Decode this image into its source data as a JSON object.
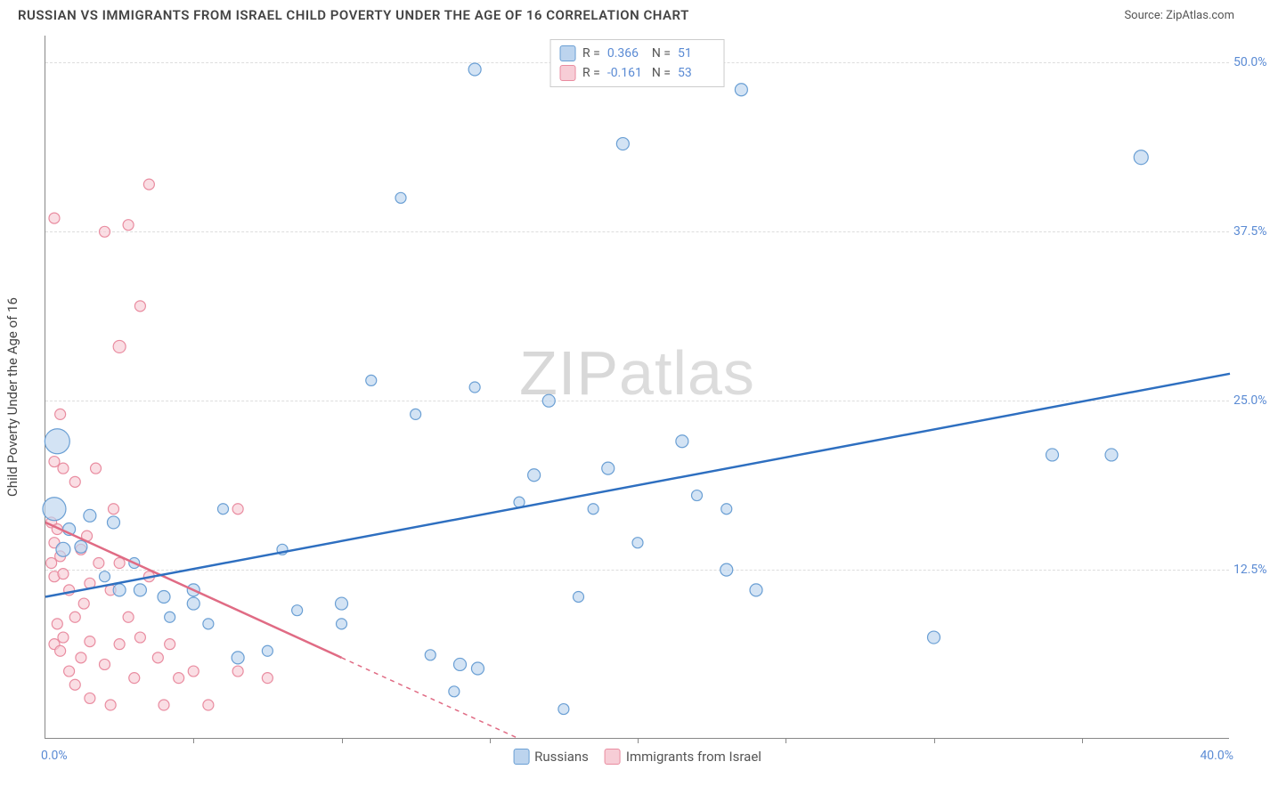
{
  "title": "RUSSIAN VS IMMIGRANTS FROM ISRAEL CHILD POVERTY UNDER THE AGE OF 16 CORRELATION CHART",
  "source_label": "Source:",
  "source_name": "ZipAtlas.com",
  "watermark": "ZIPatlas",
  "y_axis_label": "Child Poverty Under the Age of 16",
  "chart": {
    "type": "scatter",
    "xlim": [
      0,
      40
    ],
    "ylim": [
      0,
      52
    ],
    "x_tick_label_left": "0.0%",
    "x_tick_label_right": "40.0%",
    "x_minor_ticks": [
      5,
      10,
      15,
      20,
      25,
      30,
      35
    ],
    "y_ticks": [
      12.5,
      25.0,
      37.5,
      50.0
    ],
    "y_tick_labels": [
      "12.5%",
      "25.0%",
      "37.5%",
      "50.0%"
    ],
    "grid_color": "#dddddd",
    "axis_color": "#888888",
    "background_color": "#ffffff",
    "tick_label_color": "#5b8bd4",
    "tick_label_fontsize": 14,
    "axis_label_fontsize": 15,
    "series": {
      "russians": {
        "label": "Russians",
        "color_fill": "#bcd4ee",
        "color_stroke": "#6a9fd4",
        "trend_color": "#2e6fc0",
        "trend_width": 2.5,
        "trend": {
          "x1": 0,
          "y1": 10.5,
          "x2": 40,
          "y2": 27
        },
        "R": 0.366,
        "N": 51,
        "points": [
          {
            "x": 0.4,
            "y": 22,
            "r": 14
          },
          {
            "x": 0.3,
            "y": 17,
            "r": 13
          },
          {
            "x": 0.6,
            "y": 14,
            "r": 8
          },
          {
            "x": 1.2,
            "y": 14.2,
            "r": 7
          },
          {
            "x": 14.5,
            "y": 49.5,
            "r": 7
          },
          {
            "x": 19.5,
            "y": 44,
            "r": 7
          },
          {
            "x": 23.5,
            "y": 48,
            "r": 7
          },
          {
            "x": 37,
            "y": 43,
            "r": 8
          },
          {
            "x": 12,
            "y": 40,
            "r": 6
          },
          {
            "x": 11,
            "y": 26.5,
            "r": 6
          },
          {
            "x": 14.5,
            "y": 26,
            "r": 6
          },
          {
            "x": 12.5,
            "y": 24,
            "r": 6
          },
          {
            "x": 17,
            "y": 25,
            "r": 7
          },
          {
            "x": 21.5,
            "y": 22,
            "r": 7
          },
          {
            "x": 22,
            "y": 18,
            "r": 6
          },
          {
            "x": 23,
            "y": 17,
            "r": 6
          },
          {
            "x": 23,
            "y": 12.5,
            "r": 7
          },
          {
            "x": 24,
            "y": 11,
            "r": 7
          },
          {
            "x": 18,
            "y": 10.5,
            "r": 6
          },
          {
            "x": 19,
            "y": 20,
            "r": 7
          },
          {
            "x": 16.5,
            "y": 19.5,
            "r": 7
          },
          {
            "x": 16,
            "y": 17.5,
            "r": 6
          },
          {
            "x": 17.5,
            "y": 2.2,
            "r": 6
          },
          {
            "x": 14,
            "y": 5.5,
            "r": 7
          },
          {
            "x": 14.6,
            "y": 5.2,
            "r": 7
          },
          {
            "x": 13.8,
            "y": 3.5,
            "r": 6
          },
          {
            "x": 13,
            "y": 6.2,
            "r": 6
          },
          {
            "x": 10,
            "y": 8.5,
            "r": 6
          },
          {
            "x": 10,
            "y": 10,
            "r": 7
          },
          {
            "x": 8.5,
            "y": 9.5,
            "r": 6
          },
          {
            "x": 6.5,
            "y": 6,
            "r": 7
          },
          {
            "x": 5,
            "y": 11,
            "r": 7
          },
          {
            "x": 5,
            "y": 10,
            "r": 7
          },
          {
            "x": 4,
            "y": 10.5,
            "r": 7
          },
          {
            "x": 3.2,
            "y": 11,
            "r": 7
          },
          {
            "x": 2.5,
            "y": 11,
            "r": 7
          },
          {
            "x": 2,
            "y": 12,
            "r": 6
          },
          {
            "x": 3,
            "y": 13,
            "r": 6
          },
          {
            "x": 0.8,
            "y": 15.5,
            "r": 7
          },
          {
            "x": 1.5,
            "y": 16.5,
            "r": 7
          },
          {
            "x": 2.3,
            "y": 16,
            "r": 7
          },
          {
            "x": 5.5,
            "y": 8.5,
            "r": 6
          },
          {
            "x": 7.5,
            "y": 6.5,
            "r": 6
          },
          {
            "x": 34,
            "y": 21,
            "r": 7
          },
          {
            "x": 36,
            "y": 21,
            "r": 7
          },
          {
            "x": 30,
            "y": 7.5,
            "r": 7
          },
          {
            "x": 18.5,
            "y": 17,
            "r": 6
          },
          {
            "x": 20,
            "y": 14.5,
            "r": 6
          },
          {
            "x": 6,
            "y": 17,
            "r": 6
          },
          {
            "x": 8,
            "y": 14,
            "r": 6
          },
          {
            "x": 4.2,
            "y": 9,
            "r": 6
          }
        ]
      },
      "israel": {
        "label": "Immigrants from Israel",
        "color_fill": "#f7cdd6",
        "color_stroke": "#e98ca0",
        "trend_color": "#e06b84",
        "trend_width": 2.5,
        "trend_solid": {
          "x1": 0,
          "y1": 16,
          "x2": 10,
          "y2": 6
        },
        "trend_dashed": {
          "x1": 10,
          "y1": 6,
          "x2": 16,
          "y2": 0
        },
        "R": -0.161,
        "N": 53,
        "points": [
          {
            "x": 0.3,
            "y": 38.5,
            "r": 6
          },
          {
            "x": 0.5,
            "y": 24,
            "r": 6
          },
          {
            "x": 0.3,
            "y": 20.5,
            "r": 6
          },
          {
            "x": 0.6,
            "y": 20,
            "r": 6
          },
          {
            "x": 0.2,
            "y": 16,
            "r": 6
          },
          {
            "x": 0.4,
            "y": 15.5,
            "r": 6
          },
          {
            "x": 0.3,
            "y": 14.5,
            "r": 6
          },
          {
            "x": 0.5,
            "y": 13.5,
            "r": 6
          },
          {
            "x": 0.2,
            "y": 13,
            "r": 6
          },
          {
            "x": 0.3,
            "y": 12,
            "r": 6
          },
          {
            "x": 0.6,
            "y": 12.2,
            "r": 6
          },
          {
            "x": 0.8,
            "y": 11,
            "r": 6
          },
          {
            "x": 0.4,
            "y": 8.5,
            "r": 6
          },
          {
            "x": 0.3,
            "y": 7,
            "r": 6
          },
          {
            "x": 0.6,
            "y": 7.5,
            "r": 6
          },
          {
            "x": 0.5,
            "y": 6.5,
            "r": 6
          },
          {
            "x": 1.2,
            "y": 6,
            "r": 6
          },
          {
            "x": 1.5,
            "y": 7.2,
            "r": 6
          },
          {
            "x": 1.0,
            "y": 9,
            "r": 6
          },
          {
            "x": 1.3,
            "y": 10,
            "r": 6
          },
          {
            "x": 1.5,
            "y": 11.5,
            "r": 6
          },
          {
            "x": 1.2,
            "y": 14,
            "r": 6
          },
          {
            "x": 1.4,
            "y": 15,
            "r": 6
          },
          {
            "x": 1.8,
            "y": 13,
            "r": 6
          },
          {
            "x": 1.0,
            "y": 19,
            "r": 6
          },
          {
            "x": 1.7,
            "y": 20,
            "r": 6
          },
          {
            "x": 2.5,
            "y": 29,
            "r": 7
          },
          {
            "x": 2.8,
            "y": 38,
            "r": 6
          },
          {
            "x": 2.0,
            "y": 37.5,
            "r": 6
          },
          {
            "x": 3.5,
            "y": 41,
            "r": 6
          },
          {
            "x": 3.2,
            "y": 32,
            "r": 6
          },
          {
            "x": 2.3,
            "y": 17,
            "r": 6
          },
          {
            "x": 2.5,
            "y": 13,
            "r": 6
          },
          {
            "x": 2.2,
            "y": 11,
            "r": 6
          },
          {
            "x": 2.8,
            "y": 9,
            "r": 6
          },
          {
            "x": 2.5,
            "y": 7,
            "r": 6
          },
          {
            "x": 2.0,
            "y": 5.5,
            "r": 6
          },
          {
            "x": 3.5,
            "y": 12,
            "r": 6
          },
          {
            "x": 3.2,
            "y": 7.5,
            "r": 6
          },
          {
            "x": 3.8,
            "y": 6,
            "r": 6
          },
          {
            "x": 3.0,
            "y": 4.5,
            "r": 6
          },
          {
            "x": 4.5,
            "y": 4.5,
            "r": 6
          },
          {
            "x": 5.0,
            "y": 5,
            "r": 6
          },
          {
            "x": 4.2,
            "y": 7,
            "r": 6
          },
          {
            "x": 5.5,
            "y": 2.5,
            "r": 6
          },
          {
            "x": 6.5,
            "y": 5,
            "r": 6
          },
          {
            "x": 6.5,
            "y": 17,
            "r": 6
          },
          {
            "x": 7.5,
            "y": 4.5,
            "r": 6
          },
          {
            "x": 2.2,
            "y": 2.5,
            "r": 6
          },
          {
            "x": 1.5,
            "y": 3,
            "r": 6
          },
          {
            "x": 4.0,
            "y": 2.5,
            "r": 6
          },
          {
            "x": 0.8,
            "y": 5,
            "r": 6
          },
          {
            "x": 1.0,
            "y": 4,
            "r": 6
          }
        ]
      }
    },
    "legend_top": [
      {
        "swatch": "blue",
        "R_label": "R =",
        "R": "0.366",
        "N_label": "N =",
        "N": "51"
      },
      {
        "swatch": "pink",
        "R_label": "R =",
        "R": "-0.161",
        "N_label": "N =",
        "N": "53"
      }
    ]
  }
}
